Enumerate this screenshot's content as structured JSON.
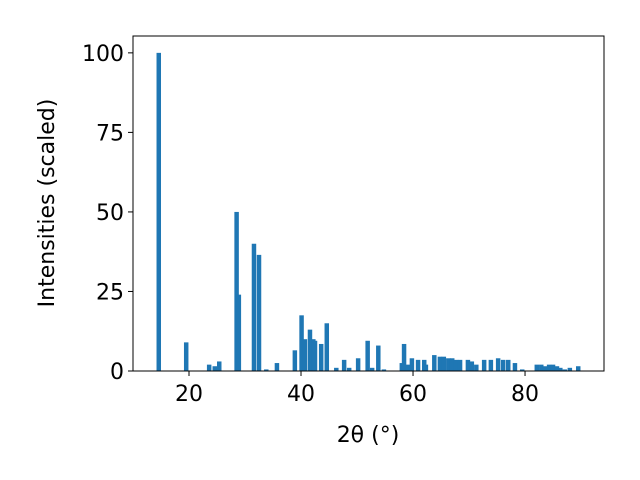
{
  "chart_data": {
    "type": "bar",
    "xlabel": "2θ (°)",
    "ylabel": "Intensities (scaled)",
    "color": "#1f77b4",
    "x": [
      14.6,
      19.5,
      23.6,
      24.6,
      25.4,
      28.5,
      28.9,
      31.6,
      32.5,
      33.8,
      35.7,
      38.9,
      40.1,
      40.7,
      41.6,
      42.2,
      42.5,
      43.6,
      44.6,
      46.3,
      47.7,
      48.6,
      50.2,
      51.9,
      52.7,
      53.8,
      54.8,
      58.0,
      58.4,
      59.1,
      59.8,
      60.9,
      62.0,
      62.3,
      63.8,
      64.8,
      65.5,
      66.3,
      67.0,
      67.7,
      68.4,
      69.8,
      70.5,
      71.3,
      72.7,
      73.9,
      75.2,
      76.1,
      77.0,
      78.2,
      79.5,
      82.1,
      82.9,
      83.6,
      84.3,
      85.0,
      85.7,
      86.3,
      87.1,
      88.0,
      89.5
    ],
    "values": [
      100,
      9,
      2,
      1.5,
      3,
      50,
      24,
      40,
      36.5,
      0.5,
      2.5,
      6.5,
      17.5,
      10,
      13,
      10,
      9.5,
      8.5,
      15,
      1,
      3.5,
      1,
      4,
      9.5,
      1,
      8,
      0.5,
      2.5,
      8.5,
      2,
      4,
      3.5,
      3.5,
      2,
      5,
      4.5,
      4.5,
      4,
      4,
      3.5,
      3.5,
      3.5,
      3,
      2,
      3.5,
      3.5,
      4,
      3.5,
      3.5,
      2.5,
      0.5,
      2,
      2,
      1.5,
      2,
      2,
      1.5,
      1,
      0.5,
      1,
      1.5
    ],
    "xlim": [
      10,
      94.1
    ],
    "ylim": [
      0,
      105.3
    ],
    "xticks": [
      20,
      40,
      60,
      80
    ],
    "yticks": [
      0,
      25,
      50,
      75,
      100
    ]
  }
}
